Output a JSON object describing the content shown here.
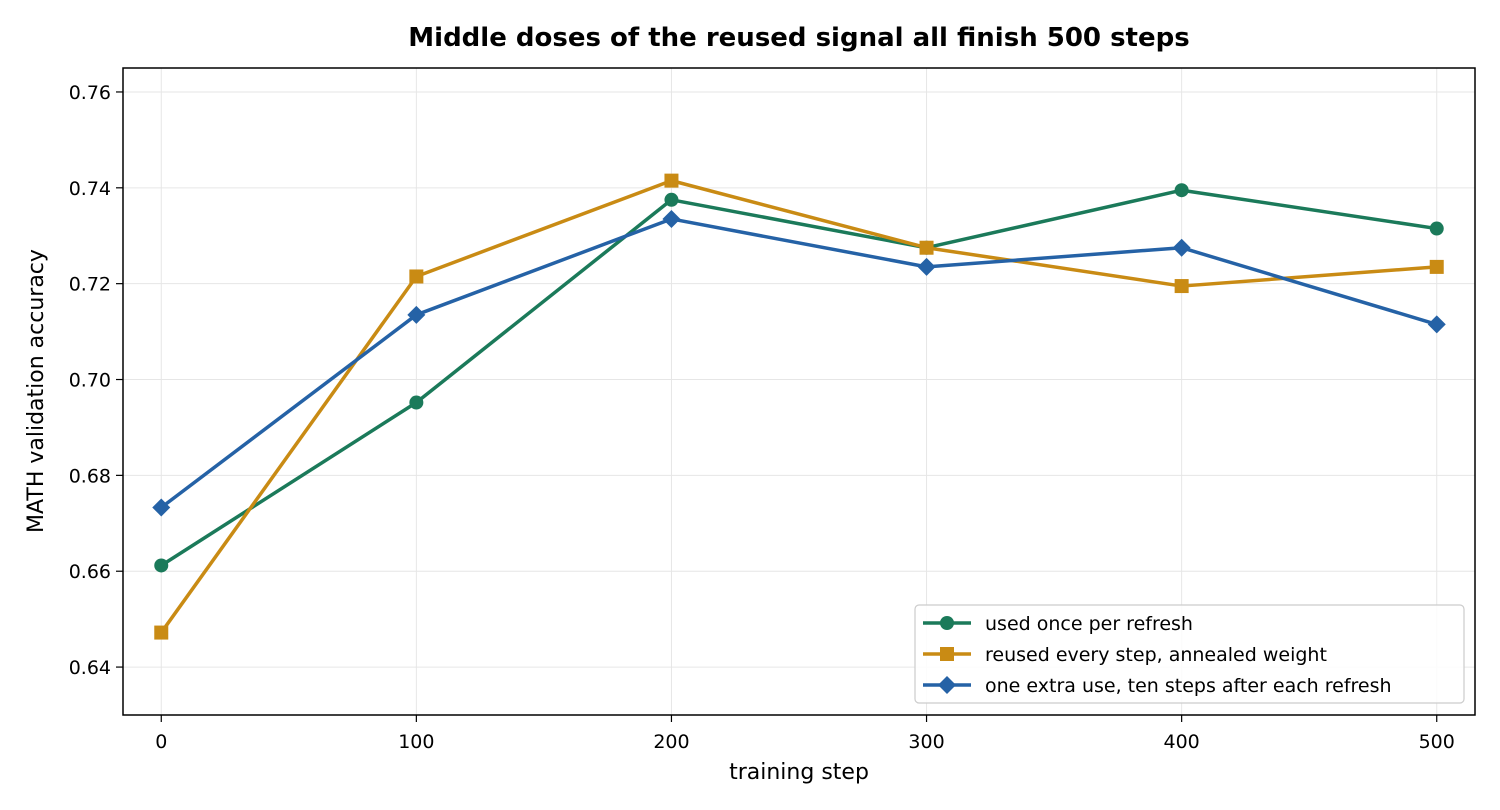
{
  "chart_data": {
    "type": "line",
    "title": "Middle doses of the reused signal all finish 500 steps",
    "xlabel": "training step",
    "ylabel": "MATH validation accuracy",
    "x": [
      0,
      100,
      200,
      300,
      400,
      500
    ],
    "xlim": [
      -15,
      515
    ],
    "ylim": [
      0.63,
      0.765
    ],
    "xticks": [
      0,
      100,
      200,
      300,
      400,
      500
    ],
    "yticks": [
      0.64,
      0.66,
      0.68,
      0.7,
      0.72,
      0.74,
      0.76
    ],
    "grid": true,
    "legend_position": "bottom-right",
    "series": [
      {
        "name": "used once per refresh",
        "color": "#1b7a5a",
        "marker": "circle",
        "values": [
          0.6612,
          0.6952,
          0.7375,
          0.7275,
          0.7395,
          0.7315
        ]
      },
      {
        "name": "reused every step, annealed weight",
        "color": "#c98b14",
        "marker": "square",
        "values": [
          0.6472,
          0.7215,
          0.7415,
          0.7275,
          0.7195,
          0.7235
        ]
      },
      {
        "name": "one extra use, ten steps after each refresh",
        "color": "#2562a6",
        "marker": "diamond",
        "values": [
          0.6733,
          0.7135,
          0.7335,
          0.7235,
          0.7275,
          0.7115
        ]
      }
    ]
  }
}
